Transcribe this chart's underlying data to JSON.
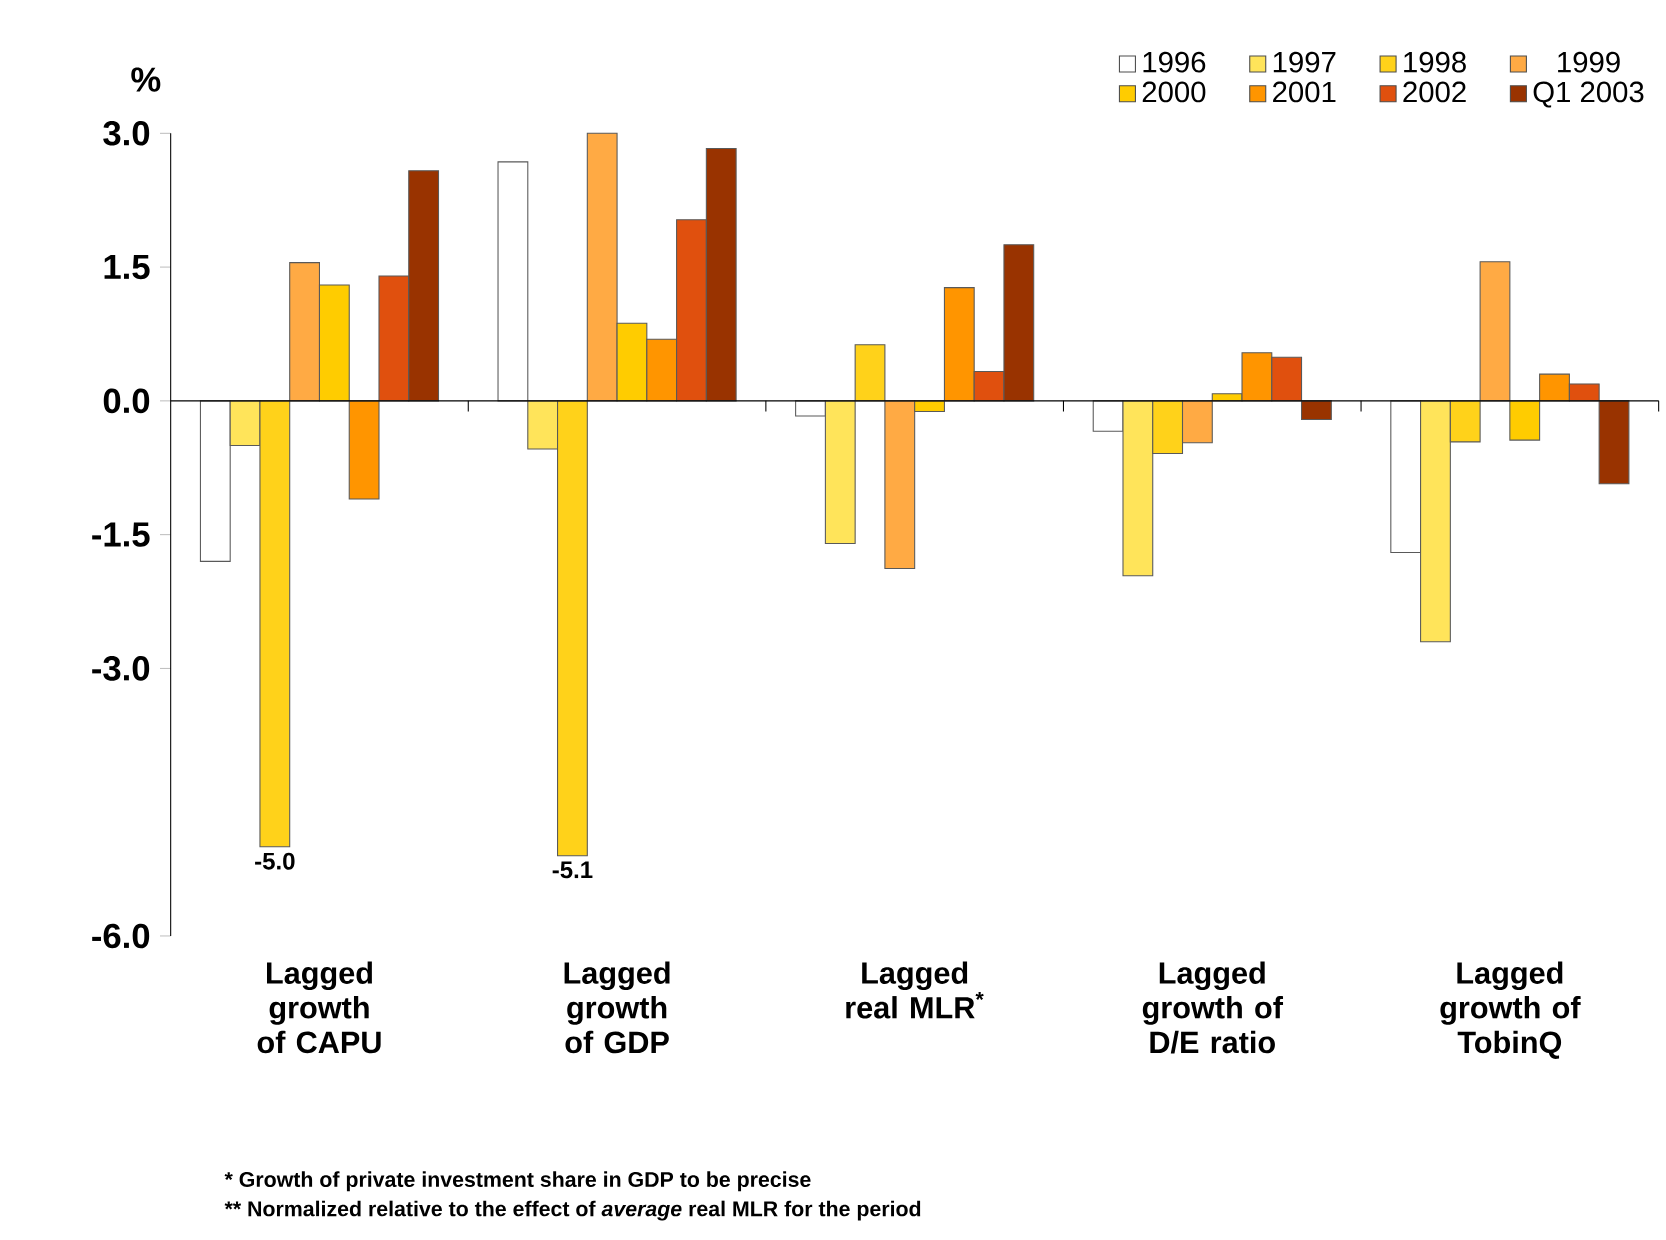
{
  "chart_data": {
    "type": "bar",
    "ylabel": "%",
    "categories": [
      "Lagged growth of CAPU",
      "Lagged growth of GDP",
      "Lagged real MLR$^{*}$",
      "Lagged growth of D/E ratio",
      "Lagged growth of TobinQ"
    ],
    "series": [
      {
        "name": "1996",
        "color": "#ffffff",
        "values": [
          -1.8,
          2.68,
          -0.17,
          -0.34,
          -1.7
        ]
      },
      {
        "name": "1997",
        "color": "#ffe45a",
        "values": [
          -0.5,
          -0.54,
          -1.6,
          -1.96,
          -2.7
        ]
      },
      {
        "name": "1998",
        "color": "#ffd21a",
        "values": [
          -5.0,
          -5.1,
          0.63,
          -0.59,
          -0.46
        ],
        "value_labels": [
          "-5.0",
          "-5.1",
          null,
          null,
          null
        ]
      },
      {
        "name": "1999",
        "color": "#ffaa44",
        "values": [
          1.55,
          3.0,
          -1.88,
          -0.47,
          1.56
        ]
      },
      {
        "name": "2000",
        "color": "#ffcc00",
        "values": [
          1.3,
          0.87,
          -0.12,
          0.08,
          -0.44
        ]
      },
      {
        "name": "2001",
        "color": "#ff9500",
        "values": [
          -1.1,
          0.69,
          1.27,
          0.54,
          0.3
        ]
      },
      {
        "name": "2002",
        "color": "#e0500e",
        "values": [
          1.4,
          2.03,
          0.33,
          0.49,
          0.19
        ]
      },
      {
        "name": "Q1 2003",
        "color": "#993300",
        "values": [
          2.58,
          2.83,
          1.75,
          -0.21,
          -0.93
        ]
      }
    ],
    "ylim": [
      -6,
      3
    ],
    "yticks": [
      {
        "value": 3,
        "label": "3.0"
      },
      {
        "value": 1.5,
        "label": "1.5"
      },
      {
        "value": 0,
        "label": "0.0"
      },
      {
        "value": -1.5,
        "label": "-1.5"
      },
      {
        "value": -3,
        "label": "-3.0"
      },
      {
        "value": -6,
        "label": "-6.0"
      }
    ],
    "legend": "top right",
    "annotations": [
      "* Growth of private investment share in GDP to be precise",
      "** Normalized relative to the effect of *average* real MLR for the period"
    ]
  }
}
